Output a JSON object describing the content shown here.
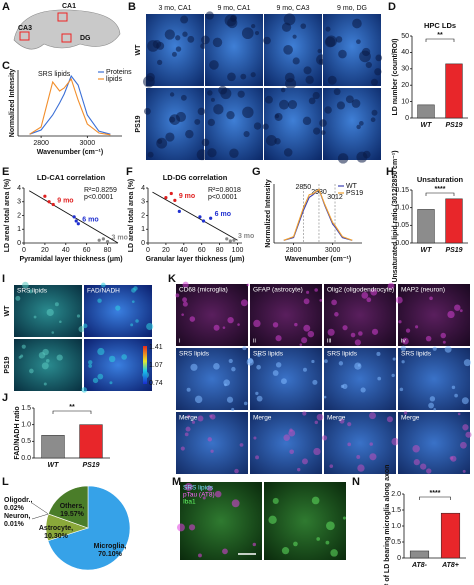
{
  "figure": {
    "A": {
      "label": "A",
      "regions": [
        "CA1",
        "CA3",
        "DG"
      ]
    },
    "B": {
      "label": "B",
      "columns": [
        "3 mo, CA1",
        "9 mo, CA1",
        "9 mo, CA3",
        "9 mo, DG"
      ],
      "rows": [
        "WT",
        "PS19"
      ]
    },
    "I": {
      "label": "I",
      "columns": [
        "SRS lipids",
        "FAD/NADH"
      ],
      "rows": [
        "WT",
        "PS19"
      ],
      "colorbar": [
        1.41,
        1.07,
        0.74
      ]
    },
    "K": {
      "label": "K",
      "columns": [
        "CD68 (microglia)",
        "GFAP (astrocyte)",
        "Olig2 (oligodendrocyte)",
        "MAP2 (neuron)"
      ],
      "numerals": [
        "i",
        "ii",
        "iii",
        "iv"
      ],
      "row2": [
        "SRS lipids",
        "SRS lipids",
        "SRS lipids",
        "SRS lipids"
      ],
      "row3": [
        "Merge",
        "Merge",
        "Merge",
        "Merge"
      ]
    },
    "M": {
      "label": "M",
      "channels": [
        "SRS lipids",
        "pTau (AT8)",
        "Iba1"
      ]
    }
  },
  "chart_data": [
    {
      "label": "C",
      "type": "line",
      "ylabel": "Normalized Intensity",
      "xlabel": "Wavenumber (cm⁻¹)",
      "annotation": "SRS lipids",
      "x": [
        2750,
        2800,
        2850,
        2880,
        2900,
        2930,
        2960,
        3000,
        3050,
        3100
      ],
      "series": [
        {
          "name": "Proteins",
          "color": "#3b6fd6",
          "values": [
            0.03,
            0.1,
            0.35,
            0.55,
            0.7,
            1.0,
            0.85,
            0.35,
            0.08,
            0.03
          ]
        },
        {
          "name": "lipids",
          "color": "#f28e2b",
          "values": [
            0.03,
            0.15,
            0.9,
            0.75,
            0.8,
            0.95,
            0.6,
            0.2,
            0.05,
            0.02
          ]
        }
      ],
      "xlim": [
        2700,
        3150
      ],
      "xticks": [
        2800,
        3000
      ],
      "ylim": [
        0,
        1.1
      ],
      "legend": "upper right"
    },
    {
      "label": "D",
      "type": "bar",
      "title": "HPC LDs",
      "ylabel": "LD number (count/ROI)",
      "categories": [
        "WT",
        "PS19"
      ],
      "values": [
        8,
        33
      ],
      "colors": [
        "#8c8c8c",
        "#e8262a"
      ],
      "ylim": [
        0,
        50
      ],
      "yticks": [
        0,
        10,
        20,
        30,
        40,
        50
      ],
      "significance": "**"
    },
    {
      "label": "E",
      "type": "scatter",
      "title": "LD-CA1 correlation",
      "xlabel": "Pyramidal layer thickness (μm)",
      "ylabel": "LD area/ total area (%)",
      "series": [
        {
          "name": "9 mo",
          "color": "#e02020",
          "x": [
            20,
            24,
            28
          ],
          "values": [
            3.4,
            3.0,
            2.8
          ]
        },
        {
          "name": "6 mo",
          "color": "#2030d0",
          "x": [
            48,
            50,
            52
          ],
          "values": [
            1.9,
            1.6,
            1.4
          ]
        },
        {
          "name": "3 mo",
          "color": "#888888",
          "x": [
            72,
            76,
            80
          ],
          "values": [
            0.2,
            0.3,
            0.1
          ]
        }
      ],
      "trendline": {
        "x": [
          5,
          90
        ],
        "y": [
          3.8,
          0
        ]
      },
      "stats": [
        "R²=0.8259",
        "p<0.0001"
      ],
      "xlim": [
        0,
        90
      ],
      "xticks": [
        0,
        20,
        40,
        60,
        80
      ],
      "ylim": [
        0,
        4
      ],
      "yticks": [
        0,
        1,
        2,
        3,
        4
      ]
    },
    {
      "label": "F",
      "type": "scatter",
      "title": "LD-DG correlation",
      "xlabel": "Granular layer thickness (μm)",
      "ylabel": "LD area/ total area (%)",
      "series": [
        {
          "name": "9 mo",
          "color": "#e02020",
          "x": [
            20,
            26,
            30
          ],
          "values": [
            3.3,
            3.6,
            3.1
          ]
        },
        {
          "name": "6 mo",
          "color": "#2030d0",
          "x": [
            35,
            58,
            62,
            70
          ],
          "values": [
            2.3,
            1.9,
            1.6,
            1.8
          ]
        },
        {
          "name": "3 mo",
          "color": "#888888",
          "x": [
            88,
            92,
            96
          ],
          "values": [
            0.3,
            0.15,
            0.2
          ]
        }
      ],
      "trendline": {
        "x": [
          5,
          100
        ],
        "y": [
          3.7,
          0.2
        ]
      },
      "stats": [
        "R²=0.8018",
        "p<0.0001"
      ],
      "xlim": [
        0,
        105
      ],
      "xticks": [
        0,
        20,
        40,
        60,
        80,
        100
      ],
      "ylim": [
        0,
        4
      ],
      "yticks": [
        0,
        1,
        2,
        3,
        4
      ]
    },
    {
      "label": "G",
      "type": "line",
      "ylabel": "Normalized Intensity",
      "xlabel": "Wavenumber (cm⁻¹)",
      "x": [
        2750,
        2800,
        2850,
        2880,
        2900,
        2930,
        2960,
        3000,
        3012,
        3050,
        3100
      ],
      "series": [
        {
          "name": "WT",
          "color": "#3b3fb0",
          "values": [
            0.05,
            0.1,
            0.6,
            0.85,
            0.9,
            1.0,
            0.7,
            0.35,
            0.3,
            0.1,
            0.05
          ]
        },
        {
          "name": "PS19",
          "color": "#f0a030",
          "values": [
            0.05,
            0.12,
            0.65,
            0.9,
            0.92,
            1.0,
            0.72,
            0.38,
            0.33,
            0.12,
            0.05
          ]
        }
      ],
      "vlines": [
        2850,
        2930,
        3012
      ],
      "xlim": [
        2700,
        3150
      ],
      "xticks": [
        2800,
        3000
      ],
      "ylim": [
        0,
        1.1
      ],
      "legend": "upper right"
    },
    {
      "label": "H",
      "type": "bar",
      "title": "Unsaturation",
      "ylabel": "Unsaturated lipid ratio (3012/2850 cm⁻¹)",
      "categories": [
        "WT",
        "PS19"
      ],
      "values": [
        0.095,
        0.125
      ],
      "colors": [
        "#8c8c8c",
        "#e8262a"
      ],
      "ylim": [
        0,
        0.15
      ],
      "yticks": [
        {
          "value": 0,
          "label": "0.00"
        },
        {
          "value": 0.05,
          "label": "0.05"
        },
        {
          "value": 0.1,
          "label": "0.10"
        },
        {
          "value": 0.15,
          "label": "0.15"
        }
      ],
      "significance": "****"
    },
    {
      "label": "J",
      "type": "bar",
      "ylabel": "FAD/NADH ratio",
      "categories": [
        "WT",
        "PS19"
      ],
      "values": [
        0.68,
        1.0
      ],
      "colors": [
        "#8c8c8c",
        "#e8262a"
      ],
      "ylim": [
        0,
        1.5
      ],
      "yticks": [
        {
          "value": 0,
          "label": "0.0"
        },
        0.5,
        {
          "value": 1,
          "label": "1.0"
        },
        1.5
      ],
      "significance": "**"
    },
    {
      "label": "L",
      "type": "pie",
      "categories": [
        "Microglia,",
        "Astrocyte,",
        "Neuron,",
        "Oligodr.,",
        "Others,"
      ],
      "values": [
        70.1,
        10.3,
        0.01,
        0.02,
        19.57
      ],
      "value_labels": [
        "70.10%",
        "10.30%",
        "0.01%",
        "0.02%",
        "19.57%"
      ],
      "colors": [
        "#36a2e8",
        "#8aa83a",
        "#c9d86b",
        "#6b8e23",
        "#4a7d29"
      ]
    },
    {
      "label": "N",
      "type": "bar",
      "ylabel": "# of LD bearing microglia along axon",
      "categories": [
        "AT8-",
        "AT8+"
      ],
      "values": [
        0.22,
        1.4
      ],
      "colors": [
        "#8c8c8c",
        "#e8262a"
      ],
      "ylim": [
        0,
        2
      ],
      "yticks": [
        0,
        0.5,
        {
          "value": 1,
          "label": "1.0"
        },
        1.5,
        {
          "value": 2,
          "label": "2.0"
        }
      ],
      "significance": "****"
    }
  ]
}
